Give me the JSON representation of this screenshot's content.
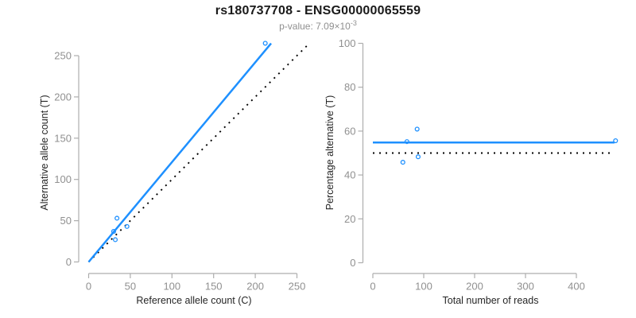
{
  "header": {
    "title": "rs180737708 - ENSG00000065559",
    "pvalue_prefix": "p-value: 7.09×10",
    "pvalue_exponent": "-3"
  },
  "colors": {
    "background": "#FFFFFF",
    "fit_line": "#1E90FF",
    "null_line": "#000000",
    "point_stroke": "#1E90FF",
    "axis_line": "#ADADAD",
    "tick_label": "#909090",
    "axis_title": "#262626",
    "title": "#1A1A1A",
    "subtitle": "#8F8F8F"
  },
  "chart_data": [
    {
      "id": "allele-counts",
      "type": "scatter",
      "title": "",
      "xlabel": "Reference allele count (C)",
      "ylabel": "Alternative allele count (T)",
      "xticks": [
        0,
        50,
        100,
        150,
        200,
        250
      ],
      "yticks": [
        0,
        50,
        100,
        150,
        200,
        250
      ],
      "xlim": [
        0,
        264
      ],
      "ylim": [
        0,
        276
      ],
      "grid": false,
      "legend": false,
      "points": [
        {
          "x": 34,
          "y": 53
        },
        {
          "x": 46,
          "y": 43
        },
        {
          "x": 30,
          "y": 37
        },
        {
          "x": 32,
          "y": 27
        },
        {
          "x": 212,
          "y": 265
        }
      ],
      "fit_line": {
        "x1": 0,
        "y1": 0,
        "x2": 219,
        "y2": 264.9,
        "style": "solid"
      },
      "null_line": {
        "x1": 0,
        "y1": 0,
        "x2": 264,
        "y2": 264,
        "style": "dotted"
      }
    },
    {
      "id": "percentage-vs-reads",
      "type": "scatter",
      "title": "",
      "xlabel": "Total number of reads",
      "ylabel": "Percentage alternative (T)",
      "xticks": [
        0,
        100,
        200,
        300,
        400
      ],
      "yticks": [
        0,
        20,
        40,
        60,
        80,
        100
      ],
      "xlim": [
        0,
        495
      ],
      "ylim": [
        0,
        104
      ],
      "grid": false,
      "legend": false,
      "points": [
        {
          "x": 87,
          "y": 60.9
        },
        {
          "x": 89,
          "y": 48.3
        },
        {
          "x": 67,
          "y": 55.2
        },
        {
          "x": 59,
          "y": 45.8
        },
        {
          "x": 477,
          "y": 55.6
        }
      ],
      "fit_line": {
        "x1": 0,
        "y1": 54.8,
        "x2": 475,
        "y2": 54.8,
        "style": "solid"
      },
      "null_line": {
        "x1": 0,
        "y1": 50,
        "x2": 475,
        "y2": 50,
        "style": "dotted"
      }
    }
  ]
}
